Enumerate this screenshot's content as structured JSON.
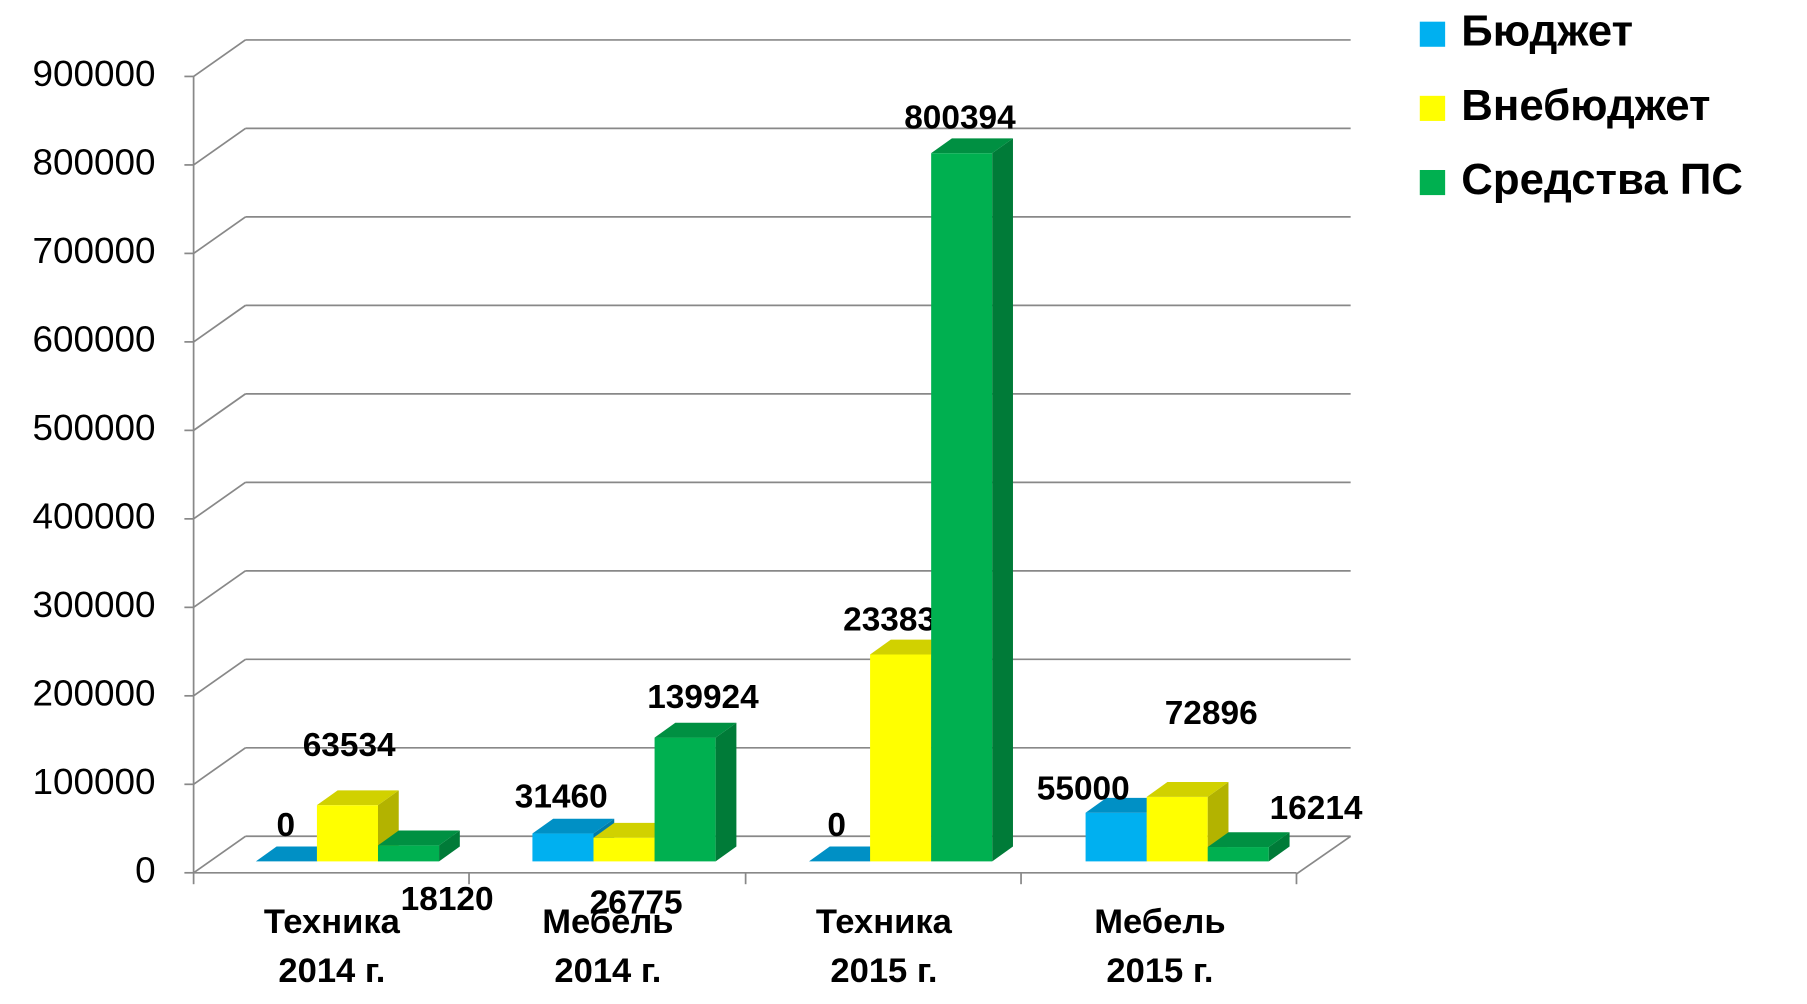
{
  "chart_data": {
    "type": "bar3d",
    "categories": [
      "Техника 2014 г.",
      "Мебель 2014 г.",
      "Техника 2015 г.",
      "Мебель 2015 г."
    ],
    "series": [
      {
        "name": "Бюджет",
        "color": "#00b0f0",
        "values": [
          0,
          31460,
          0,
          55000
        ]
      },
      {
        "name": "Внебюджет",
        "color": "#ffff00",
        "values": [
          63534,
          26775,
          233837,
          72896
        ]
      },
      {
        "name": "Средства ПС",
        "color": "#00b050",
        "values": [
          18120,
          139924,
          800394,
          16214
        ]
      }
    ],
    "ylim": [
      0,
      900000
    ],
    "yticks": [
      0,
      100000,
      200000,
      300000,
      400000,
      500000,
      600000,
      700000,
      800000,
      900000
    ],
    "grid": true,
    "legend": "right"
  }
}
